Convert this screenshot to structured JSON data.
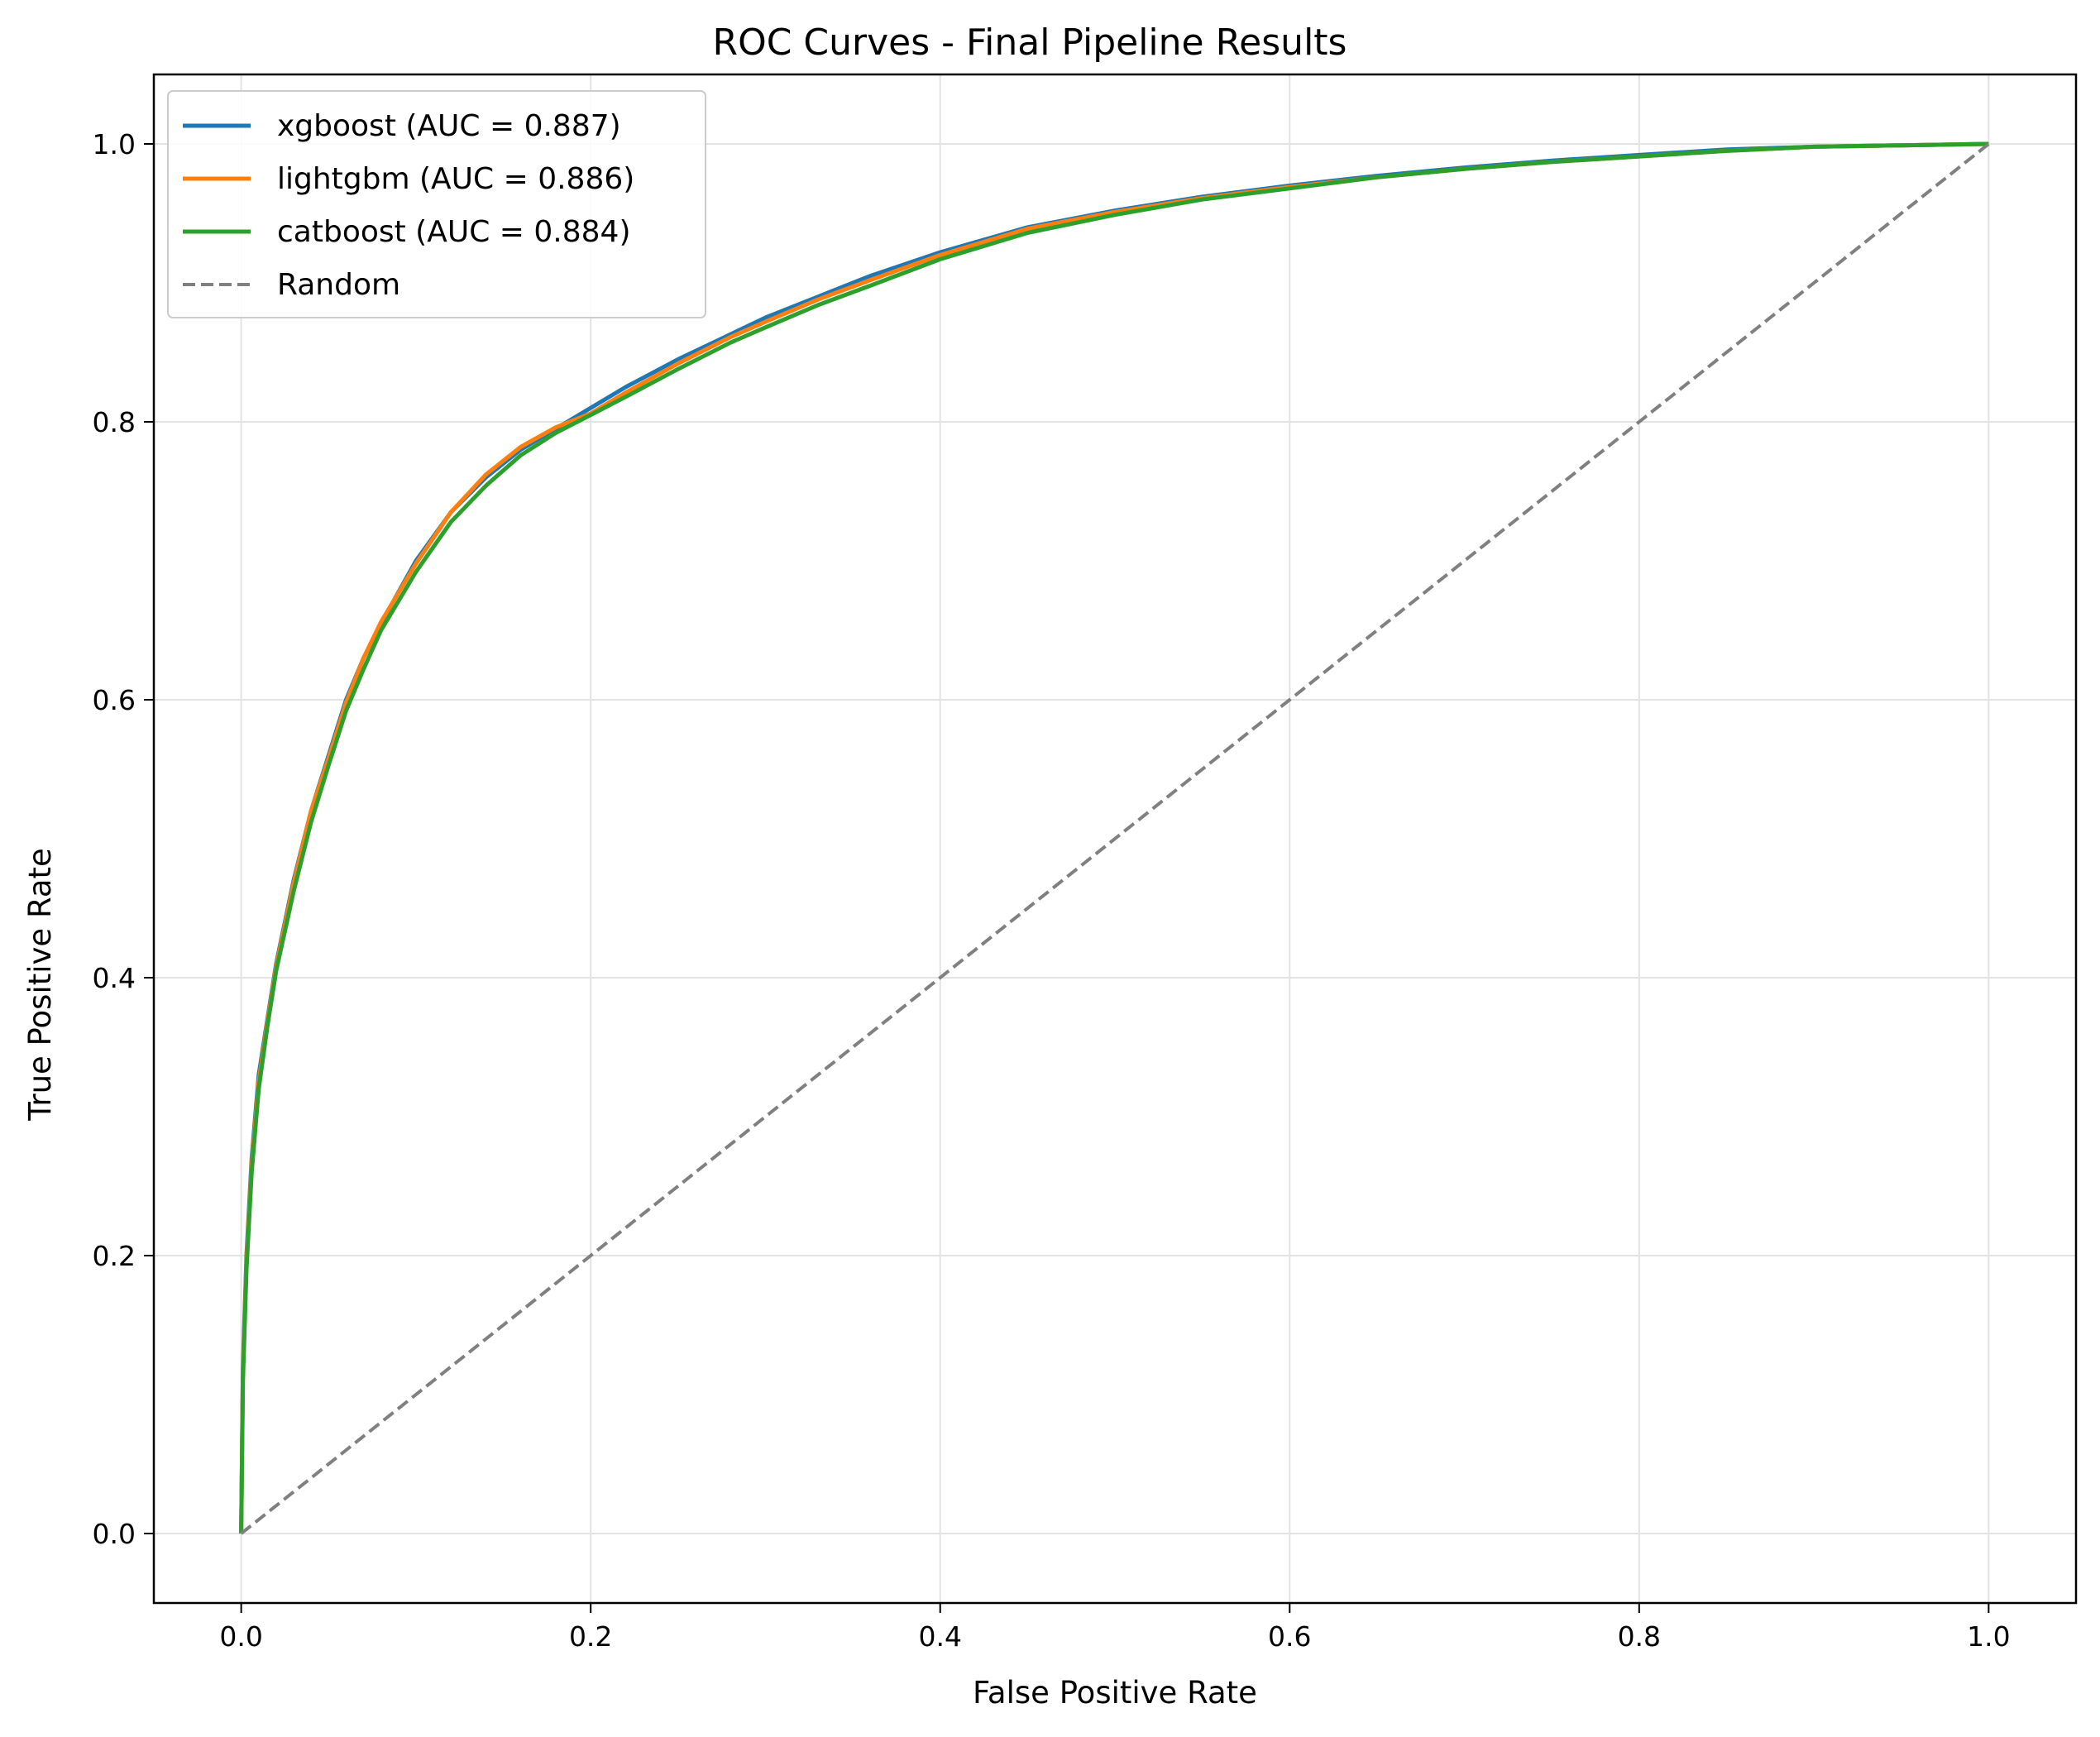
{
  "chart_data": {
    "type": "line",
    "title": "ROC Curves - Final Pipeline Results",
    "xlabel": "False Positive Rate",
    "ylabel": "True Positive Rate",
    "xlim": [
      -0.05,
      1.05
    ],
    "ylim": [
      -0.05,
      1.05
    ],
    "x_ticks": [
      0.0,
      0.2,
      0.4,
      0.6,
      0.8,
      1.0
    ],
    "y_ticks": [
      0.0,
      0.2,
      0.4,
      0.6,
      0.8,
      1.0
    ],
    "x_tick_labels": [
      "0.0",
      "0.2",
      "0.4",
      "0.6",
      "0.8",
      "1.0"
    ],
    "y_tick_labels": [
      "0.0",
      "0.2",
      "0.4",
      "0.6",
      "0.8",
      "1.0"
    ],
    "grid": true,
    "legend_position": "top-left",
    "series": [
      {
        "name": "xgboost (AUC = 0.887)",
        "color": "#1f77b4",
        "style": "solid",
        "x": [
          0.0,
          0.001,
          0.003,
          0.006,
          0.01,
          0.015,
          0.02,
          0.03,
          0.04,
          0.05,
          0.06,
          0.07,
          0.08,
          0.1,
          0.12,
          0.14,
          0.16,
          0.18,
          0.2,
          0.22,
          0.25,
          0.28,
          0.3,
          0.33,
          0.36,
          0.4,
          0.45,
          0.5,
          0.55,
          0.6,
          0.65,
          0.7,
          0.75,
          0.8,
          0.85,
          0.9,
          0.95,
          1.0
        ],
        "y": [
          0.0,
          0.12,
          0.2,
          0.27,
          0.33,
          0.37,
          0.41,
          0.47,
          0.52,
          0.56,
          0.6,
          0.63,
          0.655,
          0.7,
          0.735,
          0.76,
          0.78,
          0.795,
          0.81,
          0.825,
          0.845,
          0.863,
          0.875,
          0.89,
          0.905,
          0.922,
          0.94,
          0.952,
          0.962,
          0.97,
          0.977,
          0.983,
          0.988,
          0.992,
          0.996,
          0.998,
          0.999,
          1.0
        ]
      },
      {
        "name": "lightgbm (AUC = 0.886)",
        "color": "#ff7f0e",
        "style": "solid",
        "x": [
          0.0,
          0.001,
          0.003,
          0.006,
          0.01,
          0.015,
          0.02,
          0.03,
          0.04,
          0.05,
          0.06,
          0.07,
          0.08,
          0.1,
          0.12,
          0.14,
          0.16,
          0.18,
          0.2,
          0.22,
          0.25,
          0.28,
          0.3,
          0.33,
          0.36,
          0.4,
          0.45,
          0.5,
          0.55,
          0.6,
          0.65,
          0.7,
          0.75,
          0.8,
          0.85,
          0.9,
          0.95,
          1.0
        ],
        "y": [
          0.0,
          0.115,
          0.195,
          0.265,
          0.325,
          0.368,
          0.408,
          0.468,
          0.52,
          0.558,
          0.598,
          0.63,
          0.656,
          0.698,
          0.735,
          0.762,
          0.782,
          0.796,
          0.806,
          0.821,
          0.842,
          0.861,
          0.872,
          0.888,
          0.902,
          0.92,
          0.939,
          0.951,
          0.961,
          0.969,
          0.976,
          0.982,
          0.987,
          0.991,
          0.995,
          0.998,
          0.999,
          1.0
        ]
      },
      {
        "name": "catboost (AUC = 0.884)",
        "color": "#2ca02c",
        "style": "solid",
        "x": [
          0.0,
          0.001,
          0.003,
          0.006,
          0.01,
          0.015,
          0.02,
          0.03,
          0.04,
          0.05,
          0.06,
          0.07,
          0.08,
          0.1,
          0.12,
          0.14,
          0.16,
          0.18,
          0.2,
          0.22,
          0.25,
          0.28,
          0.3,
          0.33,
          0.36,
          0.4,
          0.45,
          0.5,
          0.55,
          0.6,
          0.65,
          0.7,
          0.75,
          0.8,
          0.85,
          0.9,
          0.95,
          1.0
        ],
        "y": [
          0.0,
          0.11,
          0.19,
          0.26,
          0.32,
          0.365,
          0.405,
          0.462,
          0.512,
          0.553,
          0.592,
          0.622,
          0.65,
          0.692,
          0.728,
          0.754,
          0.776,
          0.792,
          0.805,
          0.818,
          0.838,
          0.857,
          0.868,
          0.884,
          0.898,
          0.917,
          0.936,
          0.949,
          0.96,
          0.968,
          0.976,
          0.982,
          0.987,
          0.991,
          0.995,
          0.998,
          0.999,
          1.0
        ]
      },
      {
        "name": "Random",
        "color": "#808080",
        "style": "dashed",
        "x": [
          0.0,
          1.0
        ],
        "y": [
          0.0,
          1.0
        ]
      }
    ]
  }
}
